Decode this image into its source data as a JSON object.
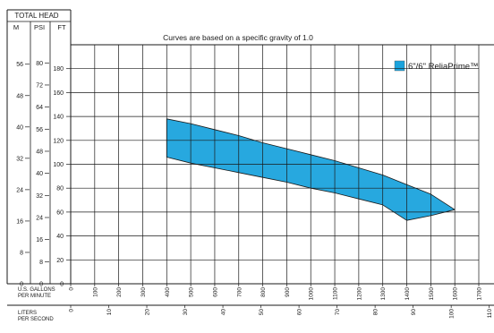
{
  "chart_data": {
    "type": "area",
    "title": "Curves are based on a specific gravity of 1.0",
    "header_label": "TOTAL HEAD",
    "unit_labels": {
      "m": "M",
      "psi": "PSI",
      "ft": "FT"
    },
    "xlabel": "U.S. GALLONS PER MINUTE",
    "xlabel_lines": [
      "U.S. GALLONS",
      "PER MINUTE"
    ],
    "x2label": "LITERS PER SECOND",
    "x2label_lines": [
      "LITERS",
      "PER SECOND"
    ],
    "ylabel": "FT",
    "xlim": [
      0,
      1700
    ],
    "ylim": [
      0,
      200
    ],
    "x_ticks": [
      0,
      100,
      200,
      300,
      400,
      500,
      600,
      700,
      800,
      900,
      1000,
      1100,
      1200,
      1300,
      1400,
      1500,
      1600,
      1700
    ],
    "x2_ticks": [
      0,
      10,
      20,
      30,
      40,
      50,
      60,
      70,
      80,
      90,
      100,
      110
    ],
    "ft_ticks": [
      0,
      20,
      40,
      60,
      80,
      100,
      120,
      140,
      160,
      180
    ],
    "psi_ticks": [
      0,
      8,
      16,
      24,
      32,
      40,
      48,
      56,
      64,
      72,
      80
    ],
    "m_ticks": [
      0,
      8,
      16,
      24,
      32,
      40,
      48,
      56
    ],
    "grid": true,
    "legend_position": "top-right",
    "series": [
      {
        "name": "6\"/6\" ReliaPrime™",
        "color": "#1BA3DD",
        "upper": {
          "x": [
            400,
            500,
            600,
            700,
            800,
            900,
            1000,
            1100,
            1200,
            1300,
            1400,
            1500,
            1600
          ],
          "y": [
            138,
            134,
            129,
            124,
            118,
            113,
            108,
            103,
            97,
            91,
            83,
            75,
            62
          ]
        },
        "lower": {
          "x": [
            400,
            500,
            600,
            700,
            800,
            900,
            1000,
            1100,
            1200,
            1300,
            1400,
            1500,
            1600
          ],
          "y": [
            106,
            101,
            97,
            93,
            89,
            85,
            80,
            76,
            71,
            66,
            53,
            57,
            62
          ]
        }
      }
    ]
  }
}
